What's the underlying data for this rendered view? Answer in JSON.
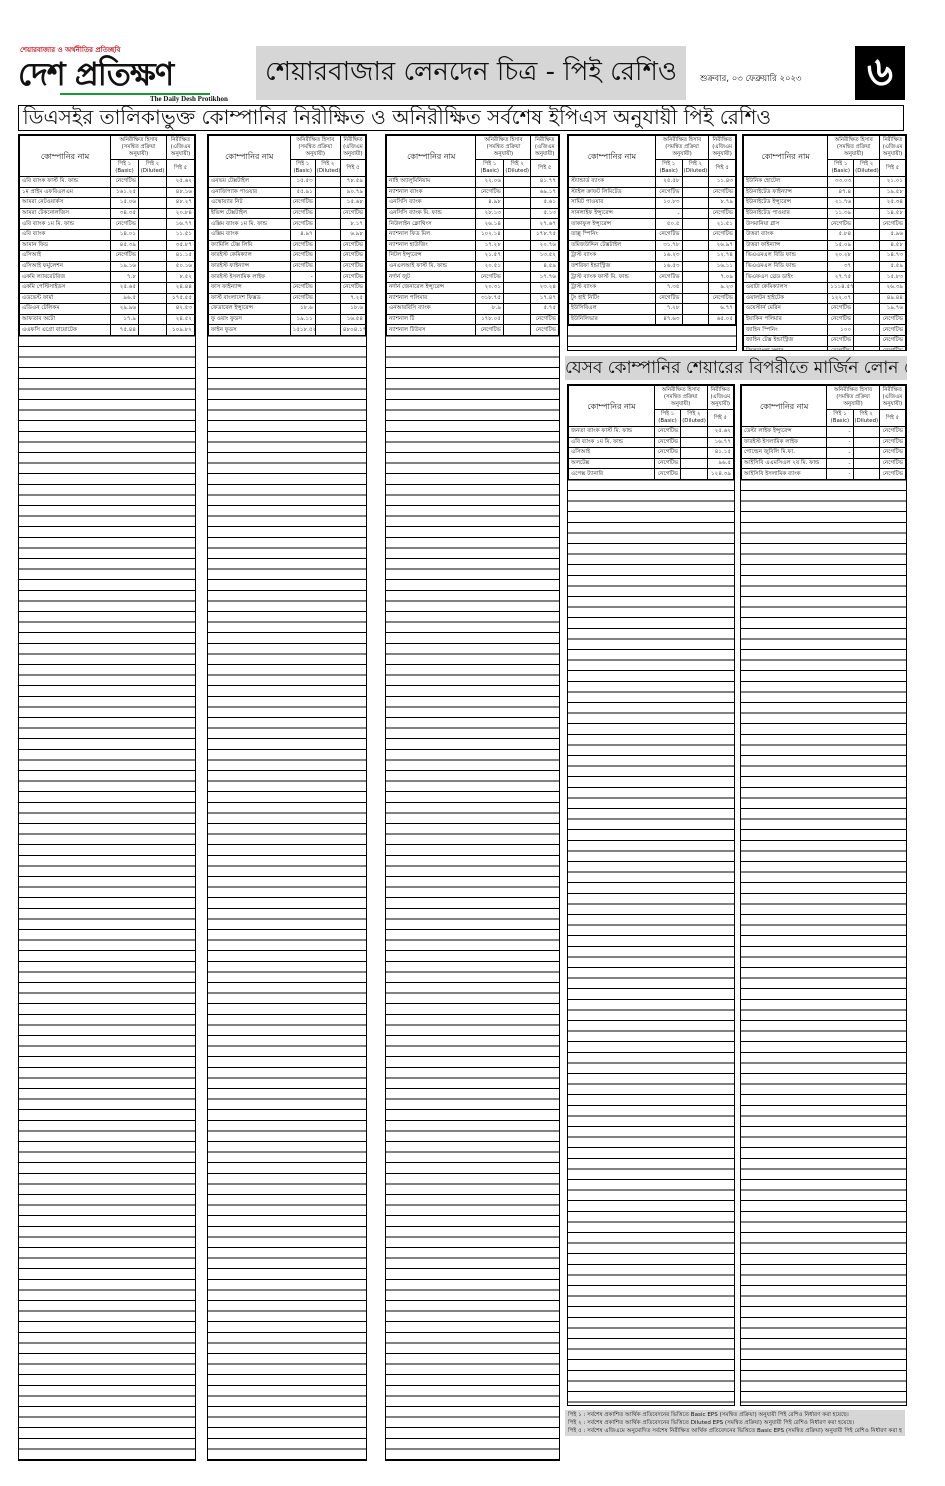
{
  "masthead": {
    "tagline": "শেয়ারবাজার ও অর্থনীতির প্রতিচ্ছবি",
    "logo": "দেশ প্রতিক্ষণ",
    "logo_en": "The Daily Desh Protikhon",
    "section_title": "শেয়ারবাজার লেনদেন চিত্র - পিই রেশিও",
    "date": "শুক্রবার, ০৩ ফেব্রুয়ারি ২০২৩",
    "page_number": "৬",
    "brand_red": "#c0202a",
    "brand_green": "#1a9a3a"
  },
  "banner": "ডিএসইর তালিকাভুক্ত কোম্পানির নিরীক্ষিত ও অনিরীক্ষিত সর্বশেষ ইপিএস অনুযায়ী পিই রেশিও",
  "margin_banner": "যেসব কোম্পানির শেয়ারের বিপরীতে মার্জিন লোন নেই",
  "headers": {
    "name": "কোম্পানির নাম",
    "unaudited": "অনিরীক্ষিত হিসাব (সমন্বিত প্রক্রিয়া অনুযায়ী)",
    "audited": "নিরীক্ষিত (এজিএম অনুযায়ী)",
    "pe1": "পিই ১ (Basic)",
    "pe2": "পিই ২ (Diluted)",
    "pe5": "পিই ৫"
  },
  "tables": [
    {
      "rows": [
        [
          "এবি ব্যাংক ফার্স্ট মি. ফান্ড",
          "নেগেটিভ",
          "",
          "২৫.৬২"
        ],
        [
          "১ম প্রাইম এফবিএলএম",
          "১৬১.২৫",
          "",
          "৪৮.১৬"
        ],
        [
          "আমরা নেটওয়ার্কস",
          "১৫.০৬",
          "",
          "৪৮.২৭"
        ],
        [
          "আমরা টেকনোলজিস",
          "৩৪.৩৫",
          "",
          "২০.৮৪"
        ],
        [
          "এবি ব্যাংক ১ম মি. ফান্ড",
          "নেগেটিভ",
          "",
          "১৬.৭৭"
        ],
        [
          "এবি ব্যাংক",
          "১৪.০১",
          "",
          "১১.৫১"
        ],
        [
          "আমান ফিড",
          "৪৫.৩৯",
          "",
          "৩৫.৮৭"
        ],
        [
          "এসিআই",
          "নেগেটিভ",
          "",
          "৪১.১৫"
        ],
        [
          "এসিআই ফর্মুলেশন",
          "১৯.১৬",
          "",
          "৫০.১৬"
        ],
        [
          "একমি ল্যাবরেটরিজ",
          "৭.৮",
          "",
          "৮.৫২"
        ],
        [
          "একমি পেস্টিসাইডস",
          "২৫.৬৫",
          "",
          "২৪.৪৪"
        ],
        [
          "এডভেন্ট ফার্মা",
          "৯৬.৫",
          "",
          "১৭৫.৫৫"
        ],
        [
          "এডিএন টেলিকম",
          "২৯.৯৬",
          "",
          "৪২.৫৩"
        ],
        [
          "আফতাব অটো",
          "১৭.৯",
          "",
          "২৪.৫২"
        ],
        [
          "এএফসি এগ্রো বায়োটেক",
          "৭৫.৪৪",
          "",
          "১০৯.৮২"
        ]
      ]
    },
    {
      "rows": [
        [
          "এনভয় টেক্সটাইল",
          "১৫.৫৩",
          "",
          "৭৮.৫৯"
        ],
        [
          "এনার্জিপ্যাক পাওয়ার",
          "৫৫.৯১",
          "",
          "৯০.৭৯"
        ],
        [
          "এস্কোয়্যার নিট",
          "নেগেটিভ",
          "",
          "১৫.৬৮"
        ],
        [
          "ইভিন্স টেক্সটাইল",
          "নেগেটিভ",
          "",
          "নেগেটিভ"
        ],
        [
          "এক্সিম ব্যাংক ১ম মি. ফান্ড",
          "নেগেটিভ",
          "",
          "৮.১৭"
        ],
        [
          "এক্সিম ব্যাংক",
          "৪.৯৭",
          "",
          "৬.৯৮"
        ],
        [
          "ফ্যামিলি টেক্স লিমি",
          "নেগেটিভ",
          "",
          "নেগেটিভ"
        ],
        [
          "ফারইস্ট কেমিক্যাল",
          "নেগেটিভ",
          "",
          "নেগেটিভ"
        ],
        [
          "ফারইস্ট ফাইন্যান্স",
          "নেগেটিভ",
          "",
          "নেগেটিভ"
        ],
        [
          "ফারইস্ট ইসলামিক লাইফ",
          "-",
          "",
          "নেগেটিভ"
        ],
        [
          "ফাস ফাইন্যান্স",
          "নেগেটিভ",
          "",
          "নেগেটিভ"
        ],
        [
          "ফার্স্ট বাংলাদেশ ফিক্সড",
          "নেগেটিভ",
          "",
          "৭.২৫"
        ],
        [
          "ফেডারেল ইন্স্যুরেন্স",
          "১৮.৬",
          "",
          "১৮.৬"
        ],
        [
          "ফু ওয়াং ফুডস",
          "১৯.১১",
          "",
          "১৬.৫৪"
        ],
        [
          "ফাইন ফুডস",
          "১৫১৮.৫২",
          "",
          "৪৮০৪.১৭"
        ]
      ]
    },
    {
      "rows": [
        [
          "নাহি অ্যালুমিনিয়াম",
          "২২.০৬",
          "",
          "৪১.৭৭"
        ],
        [
          "ন্যাশনাল ব্যাংক",
          "নেগেটিভ",
          "",
          "৬৯.১৭"
        ],
        [
          "এনসিসি ব্যাংক",
          "৪.৯৮",
          "",
          "৫.৬১"
        ],
        [
          "এনসিসি ব্যাংক মি. ফান্ড",
          "২৮.১৩",
          "",
          "৫.১৩"
        ],
        [
          "নিউলাইন ক্লোথিংস",
          "২৬.১৪",
          "",
          "২৭.৬৭"
        ],
        [
          "ন্যাশনাল ফিড মিল",
          "১০২.১৪",
          "",
          "১৭৮.৭৫"
        ],
        [
          "ন্যাশনাল হাউজিং",
          "১৭.২৮",
          "",
          "২০.৭৬"
        ],
        [
          "নিটল ইন্স্যুরেন্স",
          "২১.৫৭",
          "",
          "১৩.৫২"
        ],
        [
          "এনএলআই ফার্স্ট মি. ফান্ড",
          "২০.৫১",
          "",
          "৪.৫৯"
        ],
        [
          "নর্দার্ন জুট",
          "নেগেটিভ",
          "",
          "১৭.৭৬"
        ],
        [
          "নর্দার্ন জেনারেল ইন্স্যুরেন্স",
          "২০.৩১",
          "",
          "২৩.২৪"
        ],
        [
          "ন্যাশনাল পলিমার",
          "৩১৮.৭৫",
          "",
          "১৭.৪৭"
        ],
        [
          "এনআরবিসি ব্যাংক",
          "৮.৯",
          "",
          "৫.৭৫"
        ],
        [
          "ন্যাশনাল টি",
          "১৭৮.০৫",
          "",
          "নেগেটিভ"
        ],
        [
          "ন্যাশনাল টিউবস",
          "নেগেটিভ",
          "",
          "নেগেটিভ"
        ]
      ]
    },
    {
      "rows": [
        [
          "স্ট্যান্ডার্ড ব্যাংক",
          "২৫.৫৮",
          "",
          "১১.৪৩"
        ],
        [
          "স্টাইল ক্রাফট লিমিটেড",
          "নেগেটিভ",
          "",
          "নেগেটিভ"
        ],
        [
          "সামিট পাওয়ার",
          "১০.৮৩",
          "",
          "৮.৭৯"
        ],
        [
          "সানলাইফ ইন্স্যুরেন্স",
          "-",
          "",
          "নেগেটিভ"
        ],
        [
          "তাকাফুল ইন্স্যুরেন্স",
          "৫০.৫",
          "",
          "২১.৫১"
        ],
        [
          "তাল্লু স্পিনিং",
          "নেগেটিভ",
          "",
          "নেগেটিভ"
        ],
        [
          "তমিজউদ্দিন টেক্সটাইল",
          "৩১.৭৮",
          "",
          "২৬.৯৭"
        ],
        [
          "ট্রাস্ট ব্যাংক",
          "১৬.২৩",
          "",
          "১২.৭৪"
        ],
        [
          "তশরিফা ইন্ডাস্ট্রিজ",
          "১৬.৫৩",
          "",
          "১৬.১১"
        ],
        [
          "ট্রাস্ট ব্যাংক ফার্স্ট মি. ফান্ড",
          "নেগেটিভ",
          "",
          "৭.০৯"
        ],
        [
          "ট্রাস্ট ব্যাংক",
          "৭.৩৫",
          "",
          "৯.২৩"
        ],
        [
          "টুং হাই নিটিং",
          "নেগেটিভ",
          "",
          "নেগেটিভ"
        ],
        [
          "ইউসিবিএল",
          "৭.২৮",
          "",
          "৬.৭৭"
        ],
        [
          "ইউনিলিভার",
          "৪৭.৬৩",
          "",
          "৬৫.০৫"
        ]
      ]
    },
    {
      "rows": [
        [
          "ইউনিক হোটেল",
          "৩৩.০৩",
          "",
          "২১.০১"
        ],
        [
          "ইউনাইটেড ফাইন্যান্স",
          "৪৭.৪",
          "",
          "১৯.৫৮"
        ],
        [
          "ইউনাইটেড ইন্স্যুরেন্স",
          "২১.৭৬",
          "",
          "২৫.৩৪"
        ],
        [
          "ইউনাইটেড পাওয়ার",
          "১১.৩৯",
          "",
          "১৪.৫৮"
        ],
        [
          "উসমানিয়া গ্লাস",
          "নেগেটিভ",
          "",
          "নেগেটিভ"
        ],
        [
          "উত্তরা ব্যাংক",
          "৫.৮৪",
          "",
          "৫.৯৬"
        ],
        [
          "উত্তরা ফাইন্যান্স",
          "১৫.০৯",
          "",
          "৪.৫৮"
        ],
        [
          "ভিএএমএল বিডি ফান্ড",
          "২০.২৮",
          "",
          "১৪.৭৩"
        ],
        [
          "ভিএএমএল বিডি ফান্ড",
          "৩৭",
          "",
          "৫.৫৯"
        ],
        [
          "ভিএফএস থ্রেড ডাইং",
          "২৭.৭৫",
          "",
          "১৫.৮৩"
        ],
        [
          "ওয়াটা কেমিক্যালস",
          "১১১৪.৫৭",
          "",
          "২৬.৩৯"
        ],
        [
          "ওয়ালটন হাইটেক",
          "১২২.০৭",
          "",
          "৪৯.৪৪"
        ],
        [
          "ওয়েস্টার্ন মেরিন",
          "নেগেটিভ",
          "",
          "১৯.৭৬"
        ],
        [
          "ইয়াকিন পলিমার",
          "নেগেটিভ",
          "",
          "নেগেটিভ"
        ],
        [
          "জাহিন স্পিনিং",
          "১০০",
          "",
          "নেগেটিভ"
        ],
        [
          "জাহিন টেক্স ইন্ডাস্ট্রিজ",
          "নেগেটিভ",
          "",
          "নেগেটিভ"
        ],
        [
          "জিলবাংলা সুগার",
          "নেগেটিভ",
          "",
          "নেগেটিভ"
        ]
      ]
    },
    {
      "rows": [
        [
          "জনতা ব্যাংক ফার্স্ট মি. ফান্ড",
          "নেগেটিভ",
          "",
          "২৫.৬২"
        ],
        [
          "এবি ব্যাংক ১ম মি. ফান্ড",
          "নেগেটিভ",
          "",
          "১৬.৭৭"
        ],
        [
          "এসিআই",
          "নেগেটিভ",
          "",
          "৪১.১৫"
        ],
        [
          "অলটেক্স",
          "নেগেটিভ",
          "",
          "৯৬.৫"
        ],
        [
          "এপেক্স ট্যানারি",
          "নেগেটিভ",
          "",
          "১২৪.৩৯"
        ]
      ]
    },
    {
      "rows": [
        [
          "ডেল্টা লাইফ ইন্স্যুরেন্স",
          "-",
          "",
          "নেগেটিভ"
        ],
        [
          "ফারইস্ট ইসলামিক লাইফ",
          "-",
          "",
          "নেগেটিভ"
        ],
        [
          "গোল্ডেন জুবিলি মি.ফা.",
          "-",
          "",
          "নেগেটিভ"
        ],
        [
          "আইসিবি এএমসিএল ২য় মি. ফান্ড",
          "-",
          "",
          "নেগেটিভ"
        ],
        [
          "আইসিবি ইসলামিক ব্যাংক",
          "-",
          "",
          "নেগেটিভ"
        ]
      ]
    }
  ],
  "footnotes": [
    "পিই ১ : সর্বশেষ প্রকাশিত আর্থিক প্রতিবেদনের ভিত্তিতে Basic EPS (সমন্বিত প্রক্রিয়া) অনুযায়ী পিই রেশিও নির্ধারণ করা হয়েছে।",
    "পিই ২ : সর্বশেষ প্রকাশিত আর্থিক প্রতিবেদনের ভিত্তিতে Diluted EPS (সমন্বিত প্রক্রিয়া) অনুযায়ী পিই রেশিও নির্ধারণ করা হয়েছে।",
    "পিই ৫ : সর্বশেষ এজিএমে অনুমোদিত সর্বশেষ নিরীক্ষিত আর্থিক প্রতিবেদনের ভিত্তিতে Basic EPS (সমন্বিত প্রক্রিয়া) অনুযায়ী পিই রেশিও নির্ধারণ করা হয়েছে।"
  ]
}
